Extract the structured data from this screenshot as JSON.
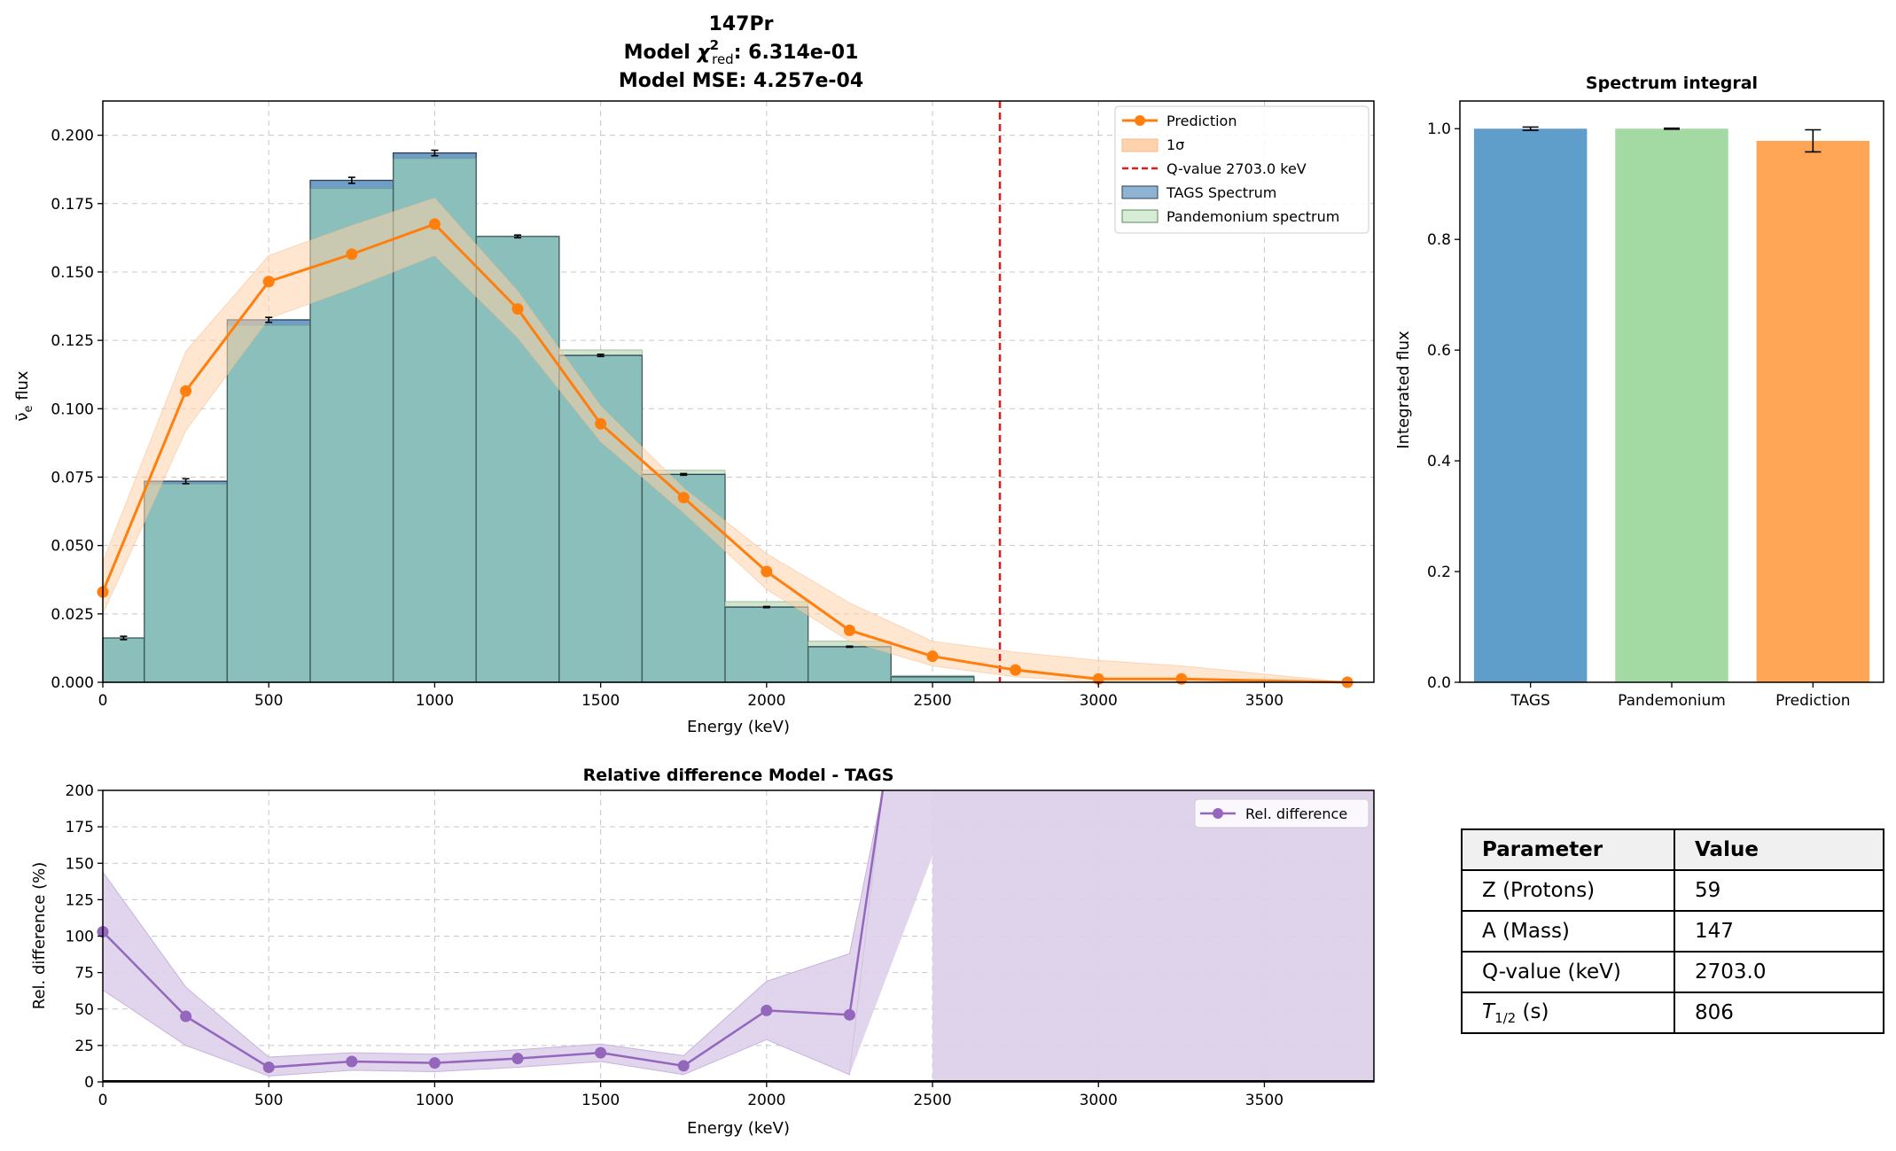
{
  "main_title": {
    "line1": "147Pr",
    "line2_prefix": "Model ",
    "line2_symbol": "χ",
    "line2_sup": "2",
    "line2_sub": "red",
    "line2_value": ": 6.314e-01",
    "line3": "Model MSE: 4.257e-04"
  },
  "colors": {
    "tags": "#6f9fc6",
    "tags_edge": "#2b3e55",
    "pandemonium": "#cfe6cd",
    "overlap": "#8bbfbb",
    "prediction": "#ff7f0e",
    "band": "#fdd2ac",
    "qline": "#e31a1c",
    "reldiff": "#9467bd",
    "reldiff_band": "#ddd0ea",
    "integral_tags": "#5f9dcb",
    "integral_pand": "#a3d9a3",
    "integral_pred": "#ffa556"
  },
  "chart_data": [
    {
      "id": "spectrum",
      "type": "bar",
      "title": "",
      "xlabel": "Energy (keV)",
      "ylabel_main": "ν̄",
      "ylabel_sub": "e",
      "ylabel_suffix": " flux",
      "xlim": [
        0,
        3830
      ],
      "ylim": [
        0,
        0.2125
      ],
      "xticks": [
        0,
        500,
        1000,
        1500,
        2000,
        2500,
        3000,
        3500
      ],
      "yticks": [
        0.0,
        0.025,
        0.05,
        0.075,
        0.1,
        0.125,
        0.15,
        0.175,
        0.2
      ],
      "ytick_labels": [
        "0.000",
        "0.025",
        "0.050",
        "0.075",
        "0.100",
        "0.125",
        "0.150",
        "0.175",
        "0.200"
      ],
      "grid": true,
      "legend_position": "top-right",
      "bin_edges": [
        0,
        125,
        375,
        625,
        875,
        1125,
        1375,
        1625,
        1875,
        2125,
        2375,
        2625
      ],
      "tags_values": [
        0.0162,
        0.0735,
        0.1325,
        0.1835,
        0.1935,
        0.163,
        0.1195,
        0.076,
        0.0275,
        0.013,
        0.002
      ],
      "tags_errors": [
        0.0006,
        0.0009,
        0.0009,
        0.0011,
        0.001,
        0.0005,
        0.0004,
        0.0003,
        0.0002,
        0.0002,
        0.0
      ],
      "pandemonium_values": [
        0.0162,
        0.0725,
        0.1305,
        0.1805,
        0.1915,
        0.163,
        0.1215,
        0.0775,
        0.0295,
        0.015,
        0.0025
      ],
      "prediction": {
        "name": "Prediction",
        "x": [
          0,
          250,
          500,
          750,
          1000,
          1250,
          1500,
          1750,
          2000,
          2250,
          2500,
          2750,
          3000,
          3250,
          3750
        ],
        "y": [
          0.033,
          0.1065,
          0.1465,
          0.1565,
          0.1675,
          0.1365,
          0.0945,
          0.0675,
          0.0405,
          0.019,
          0.0095,
          0.0045,
          0.0012,
          0.0012,
          -0.0005
        ],
        "y_low": [
          0.025,
          0.092,
          0.133,
          0.144,
          0.156,
          0.126,
          0.088,
          0.062,
          0.034,
          0.015,
          0.006,
          0.002,
          0.0,
          0.0,
          -0.003
        ],
        "y_high": [
          0.044,
          0.121,
          0.156,
          0.167,
          0.177,
          0.143,
          0.101,
          0.071,
          0.047,
          0.029,
          0.015,
          0.011,
          0.008,
          0.006,
          0.0
        ]
      },
      "q_value": 2703.0,
      "legend": [
        "Prediction",
        "1σ",
        "Q-value 2703.0 keV",
        "TAGS Spectrum",
        "Pandemonium spectrum"
      ]
    },
    {
      "id": "integral",
      "type": "bar",
      "title": "Spectrum integral",
      "ylabel": "Integrated flux",
      "categories": [
        "TAGS",
        "Pandemonium",
        "Prediction"
      ],
      "values": [
        1.0,
        1.0,
        0.978
      ],
      "errors": [
        0.003,
        0.001,
        0.02
      ],
      "ylim": [
        0,
        1.05
      ],
      "yticks": [
        0.0,
        0.2,
        0.4,
        0.6,
        0.8,
        1.0
      ],
      "ytick_labels": [
        "0.0",
        "0.2",
        "0.4",
        "0.6",
        "0.8",
        "1.0"
      ]
    },
    {
      "id": "reldiff",
      "type": "line",
      "title": "Relative difference Model - TAGS",
      "xlabel": "Energy (keV)",
      "ylabel": "Rel. difference (%)",
      "xlim": [
        0,
        3830
      ],
      "ylim": [
        0,
        200
      ],
      "xticks": [
        0,
        500,
        1000,
        1500,
        2000,
        2500,
        3000,
        3500
      ],
      "yticks": [
        0,
        25,
        50,
        75,
        100,
        125,
        150,
        175,
        200
      ],
      "grid": true,
      "legend_position": "top-right",
      "legend": [
        "Rel. difference"
      ],
      "x": [
        0,
        250,
        500,
        750,
        1000,
        1250,
        1500,
        1750,
        2000,
        2250,
        2350
      ],
      "y": [
        103,
        45,
        10,
        14,
        13,
        16,
        20,
        11,
        49,
        46,
        210
      ],
      "band_low": [
        63,
        25,
        4,
        8,
        7,
        10,
        14,
        5,
        29,
        5,
        210
      ],
      "band_high": [
        144,
        65,
        17,
        20,
        19,
        22,
        26,
        18,
        69,
        88,
        210
      ],
      "band_full_from": 2500
    }
  ],
  "table": {
    "header": [
      "Parameter",
      "Value"
    ],
    "rows": [
      [
        "Z (Protons)",
        "59"
      ],
      [
        "A (Mass)",
        "147"
      ],
      [
        "Q-value (keV)",
        "2703.0"
      ]
    ],
    "half_life": {
      "symbol": "T",
      "sub": "1/2",
      "unit": " (s)",
      "value": "806"
    }
  }
}
